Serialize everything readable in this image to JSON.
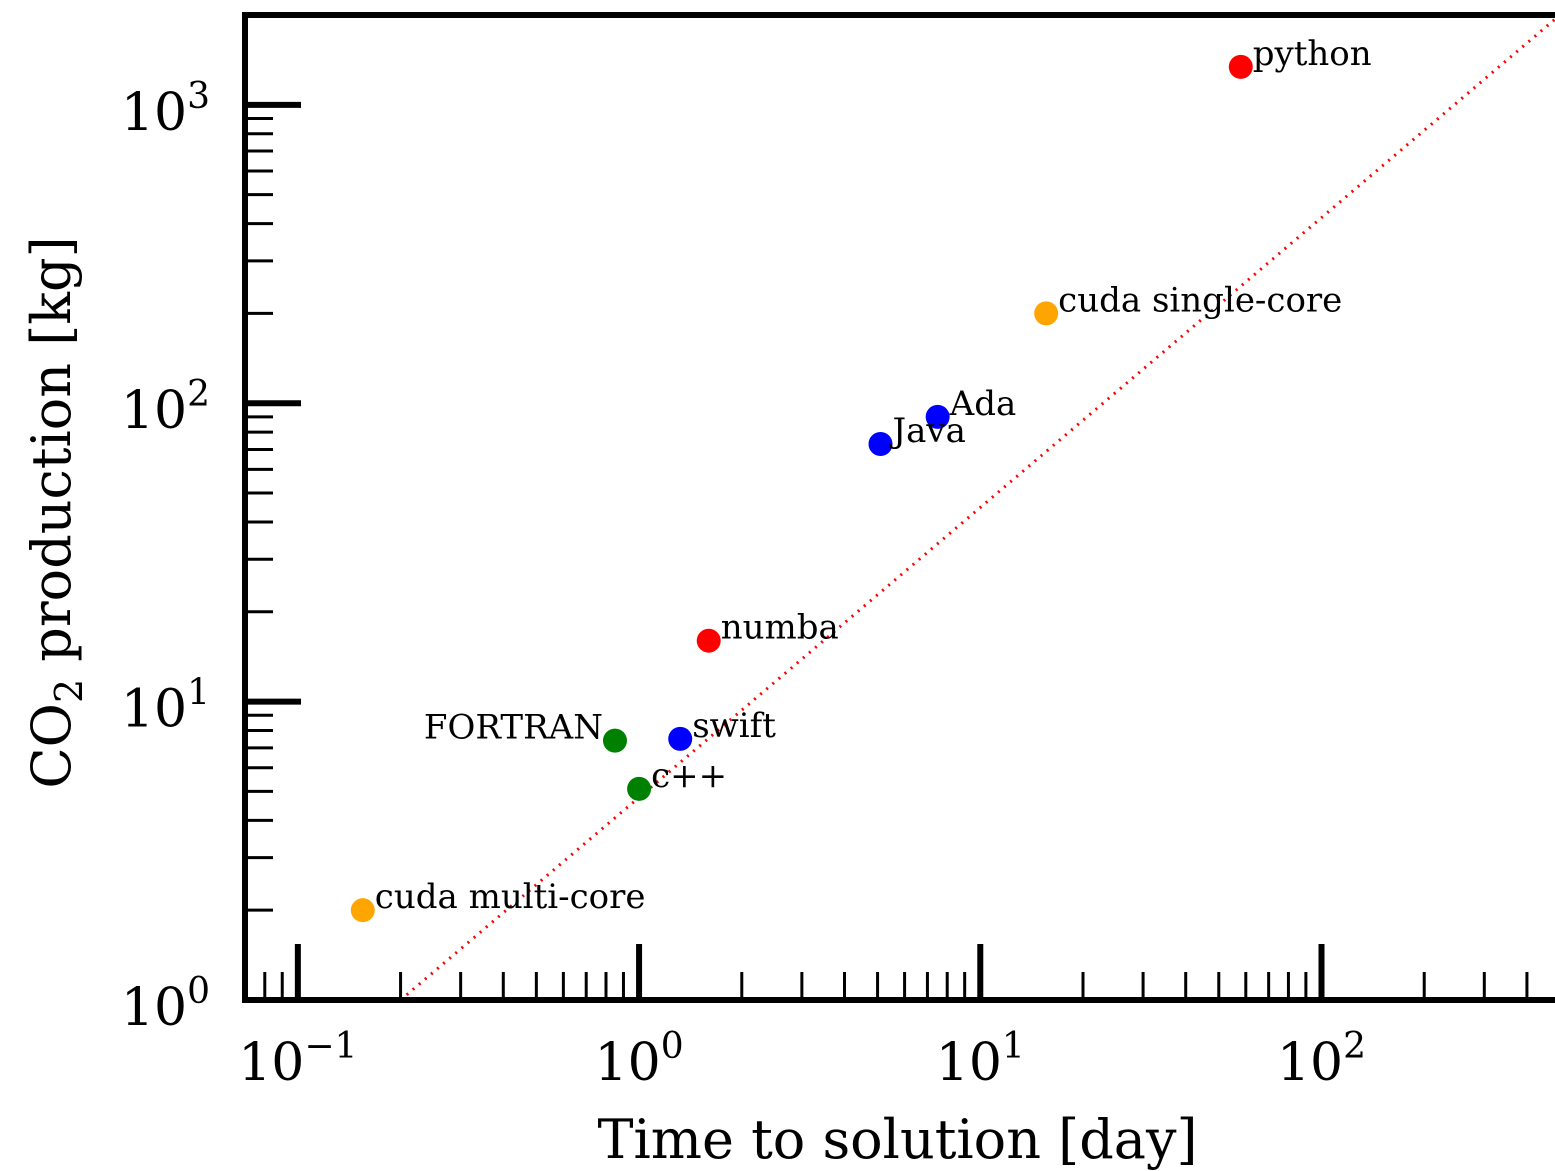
{
  "chart_data": {
    "type": "scatter",
    "xlabel": "Time to solution [day]",
    "ylabel_parts": [
      "CO",
      "2",
      " production [kg]"
    ],
    "xscale": "log",
    "yscale": "log",
    "xlim": [
      0.07,
      500
    ],
    "ylim": [
      1,
      2000
    ],
    "x_ticks": [
      {
        "base": "10",
        "exp": "−1",
        "value": 0.1
      },
      {
        "base": "10",
        "exp": "0",
        "value": 1
      },
      {
        "base": "10",
        "exp": "1",
        "value": 10
      },
      {
        "base": "10",
        "exp": "2",
        "value": 100
      }
    ],
    "y_ticks": [
      {
        "base": "10",
        "exp": "0",
        "value": 1
      },
      {
        "base": "10",
        "exp": "1",
        "value": 10
      },
      {
        "base": "10",
        "exp": "2",
        "value": 100
      },
      {
        "base": "10",
        "exp": "3",
        "value": 1000
      }
    ],
    "reference_line": {
      "style": "dotted",
      "color": "#ff0000",
      "x": [
        0.2,
        500
      ],
      "y": [
        1,
        2000
      ]
    },
    "points": [
      {
        "label": "python",
        "x": 58,
        "y": 1340,
        "color": "#ff0000",
        "label_side": "right"
      },
      {
        "label": "cuda single-core",
        "x": 15.6,
        "y": 200,
        "color": "#ffa500",
        "label_side": "right"
      },
      {
        "label": "Ada",
        "x": 7.5,
        "y": 90,
        "color": "#0000ff",
        "label_side": "right"
      },
      {
        "label": "Java",
        "x": 5.1,
        "y": 73,
        "color": "#0000ff",
        "label_side": "right"
      },
      {
        "label": "numba",
        "x": 1.6,
        "y": 16,
        "color": "#ff0000",
        "label_side": "right"
      },
      {
        "label": "swift",
        "x": 1.32,
        "y": 7.5,
        "color": "#0000ff",
        "label_side": "right"
      },
      {
        "label": "FORTRAN",
        "x": 0.85,
        "y": 7.4,
        "color": "#008000",
        "label_side": "left"
      },
      {
        "label": "c++",
        "x": 1.0,
        "y": 5.1,
        "color": "#008000",
        "label_side": "right"
      },
      {
        "label": "cuda multi-core",
        "x": 0.155,
        "y": 2.0,
        "color": "#ffa500",
        "label_side": "right"
      }
    ]
  }
}
